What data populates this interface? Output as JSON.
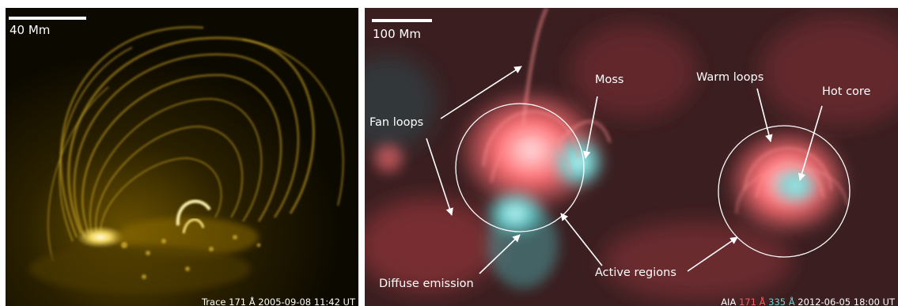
{
  "left_panel": {
    "scale_label": "40 Mm",
    "caption": "Trace 171 Å 2005-09-08 11:42 UT"
  },
  "right_panel": {
    "scale_label": "100 Mm",
    "labels": {
      "fan_loops": "Fan loops",
      "moss": "Moss",
      "warm_loops": "Warm loops",
      "hot_core": "Hot core",
      "diffuse_emission": "Diffuse emission",
      "active_regions": "Active regions"
    },
    "caption": {
      "instrument": "AIA",
      "band1": "171 Å",
      "band2": "335 Å",
      "datetime": "2012-06-05 18:00 UT"
    }
  },
  "colors": {
    "band1": "#ff5a5f",
    "band2": "#6fd6d6",
    "trace_gold": "#e8c03a"
  }
}
